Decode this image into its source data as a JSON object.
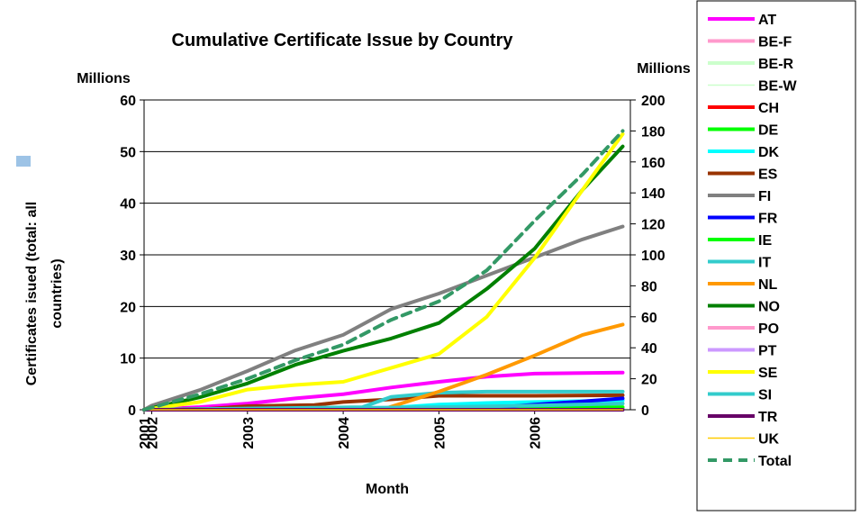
{
  "chart_data": {
    "type": "line",
    "title": "Cumulative Certificate Issue by Country",
    "xlabel": "Month",
    "ylabel_left": "Certificates isued (total: all countries)",
    "ylabel_left_line1": "Certificates isued (total: all",
    "ylabel_left_line2": "countries)",
    "left_axis_unit": "Millions",
    "right_axis_unit": "Millions",
    "x_ticks": [
      "2001",
      "2002",
      "2003",
      "2004",
      "2005",
      "2006"
    ],
    "x_range": [
      2001.92,
      2007.0
    ],
    "y_left_range": [
      0,
      60
    ],
    "y_left_ticks": [
      "0",
      "10",
      "20",
      "30",
      "40",
      "50",
      "60"
    ],
    "y_right_range": [
      0,
      200
    ],
    "y_right_ticks": [
      "0",
      "20",
      "40",
      "60",
      "80",
      "100",
      "120",
      "140",
      "160",
      "180",
      "200"
    ],
    "grid": "horizontal",
    "legend_position": "right",
    "series": [
      {
        "name": "AT",
        "color": "#ff00ff",
        "dashed": false,
        "axis": "left",
        "x": [
          2001.92,
          2002.5,
          2003.0,
          2003.5,
          2004.0,
          2004.5,
          2005.0,
          2005.5,
          2006.0,
          2006.5,
          2006.92
        ],
        "y": [
          0.0,
          0.5,
          1.2,
          2.2,
          3.0,
          4.3,
          5.4,
          6.4,
          7.0,
          7.1,
          7.2
        ]
      },
      {
        "name": "BE-F",
        "color": "#ff99cc",
        "dashed": false,
        "axis": "left",
        "x": [
          2001.92,
          2006.92
        ],
        "y": [
          0.0,
          0.0
        ]
      },
      {
        "name": "BE-R",
        "color": "#ccffcc",
        "dashed": false,
        "axis": "left",
        "x": [
          2001.92,
          2006.92
        ],
        "y": [
          0.0,
          0.0
        ]
      },
      {
        "name": "BE-W",
        "color": "#ccffcc",
        "dashed": false,
        "axis": "left",
        "thin": true,
        "x": [
          2001.92,
          2006.92
        ],
        "y": [
          0.0,
          0.0
        ]
      },
      {
        "name": "CH",
        "color": "#ff0000",
        "dashed": false,
        "axis": "left",
        "x": [
          2001.92,
          2006.92
        ],
        "y": [
          0.0,
          0.1
        ]
      },
      {
        "name": "DE",
        "color": "#00ff00",
        "dashed": false,
        "axis": "left",
        "x": [
          2001.92,
          2005.0,
          2006.92
        ],
        "y": [
          0.0,
          0.2,
          0.5
        ]
      },
      {
        "name": "DK",
        "color": "#00ffff",
        "dashed": false,
        "axis": "left",
        "x": [
          2001.92,
          2004.2,
          2004.6,
          2005.0,
          2005.5,
          2006.0,
          2006.92
        ],
        "y": [
          0.0,
          0.0,
          0.5,
          1.0,
          1.3,
          1.5,
          1.8
        ]
      },
      {
        "name": "ES",
        "color": "#993300",
        "dashed": false,
        "axis": "left",
        "x": [
          2001.92,
          2002.6,
          2003.0,
          2003.7,
          2004.0,
          2004.5,
          2005.0,
          2006.0,
          2006.92
        ],
        "y": [
          0.0,
          0.2,
          0.7,
          0.9,
          1.5,
          2.0,
          2.7,
          2.7,
          2.8
        ]
      },
      {
        "name": "FI",
        "color": "#808080",
        "dashed": false,
        "axis": "left",
        "x": [
          2001.92,
          2002.0,
          2002.5,
          2003.0,
          2003.5,
          2004.0,
          2004.5,
          2005.0,
          2005.5,
          2006.0,
          2006.5,
          2006.92
        ],
        "y": [
          0.0,
          0.8,
          3.8,
          7.5,
          11.5,
          14.5,
          19.5,
          22.5,
          26.0,
          29.5,
          33.0,
          35.5
        ]
      },
      {
        "name": "FR",
        "color": "#0000ff",
        "dashed": false,
        "axis": "left",
        "x": [
          2001.92,
          2005.5,
          2006.0,
          2006.5,
          2006.92
        ],
        "y": [
          0.0,
          0.3,
          1.0,
          1.6,
          2.2
        ]
      },
      {
        "name": "IE",
        "color": "#00ff00",
        "dashed": false,
        "axis": "left",
        "x": [
          2001.92,
          2006.92
        ],
        "y": [
          0.0,
          0.0
        ]
      },
      {
        "name": "IT",
        "color": "#33cccc",
        "dashed": false,
        "axis": "left",
        "x": [
          2001.92,
          2004.2,
          2004.5,
          2005.0,
          2005.5,
          2006.0,
          2006.92
        ],
        "y": [
          0.0,
          0.5,
          2.5,
          3.3,
          3.5,
          3.5,
          3.5
        ]
      },
      {
        "name": "NL",
        "color": "#ff9900",
        "dashed": false,
        "axis": "left",
        "x": [
          2001.92,
          2004.4,
          2005.0,
          2005.5,
          2006.0,
          2006.5,
          2006.92
        ],
        "y": [
          0.0,
          0.0,
          3.5,
          6.8,
          10.5,
          14.5,
          16.5
        ]
      },
      {
        "name": "NO",
        "color": "#008000",
        "dashed": false,
        "axis": "right",
        "x": [
          2001.92,
          2002.5,
          2003.0,
          2003.5,
          2004.0,
          2004.5,
          2005.0,
          2005.5,
          2006.0,
          2006.5,
          2006.92
        ],
        "y": [
          0.0,
          8.0,
          17.0,
          29.0,
          38.0,
          46.0,
          56.0,
          78.0,
          104.0,
          142.0,
          170.0
        ]
      },
      {
        "name": "PO",
        "color": "#ff99cc",
        "dashed": false,
        "axis": "left",
        "x": [
          2001.92,
          2006.92
        ],
        "y": [
          0.0,
          0.0
        ]
      },
      {
        "name": "PT",
        "color": "#cc99ff",
        "dashed": false,
        "axis": "left",
        "x": [
          2001.92,
          2006.92
        ],
        "y": [
          0.0,
          0.0
        ]
      },
      {
        "name": "SE",
        "color": "#ffff00",
        "dashed": false,
        "axis": "right",
        "x": [
          2001.92,
          2002.5,
          2003.0,
          2003.5,
          2004.0,
          2004.5,
          2005.0,
          2005.5,
          2006.0,
          2006.5,
          2006.92
        ],
        "y": [
          0.0,
          5.0,
          13.0,
          16.0,
          18.0,
          27.0,
          36.0,
          60.0,
          98.0,
          142.0,
          178.0
        ]
      },
      {
        "name": "SI",
        "color": "#33cccc",
        "dashed": false,
        "axis": "left",
        "x": [
          2001.92,
          2005.0,
          2006.0,
          2006.92
        ],
        "y": [
          0.0,
          0.5,
          0.8,
          1.2
        ]
      },
      {
        "name": "TR",
        "color": "#660066",
        "dashed": false,
        "axis": "left",
        "x": [
          2001.92,
          2006.92
        ],
        "y": [
          0.0,
          0.0
        ]
      },
      {
        "name": "UK",
        "color": "#ffcc00",
        "dashed": false,
        "axis": "left",
        "thin": true,
        "x": [
          2001.92,
          2006.92
        ],
        "y": [
          0.0,
          0.0
        ]
      },
      {
        "name": "Total",
        "color": "#339966",
        "dashed": true,
        "axis": "right",
        "x": [
          2001.92,
          2002.5,
          2003.0,
          2003.5,
          2004.0,
          2004.5,
          2005.0,
          2005.5,
          2006.0,
          2006.5,
          2006.92
        ],
        "y": [
          0.0,
          10.0,
          20.0,
          32.0,
          42.0,
          58.0,
          70.0,
          90.0,
          122.0,
          152.0,
          180.0
        ]
      }
    ]
  }
}
